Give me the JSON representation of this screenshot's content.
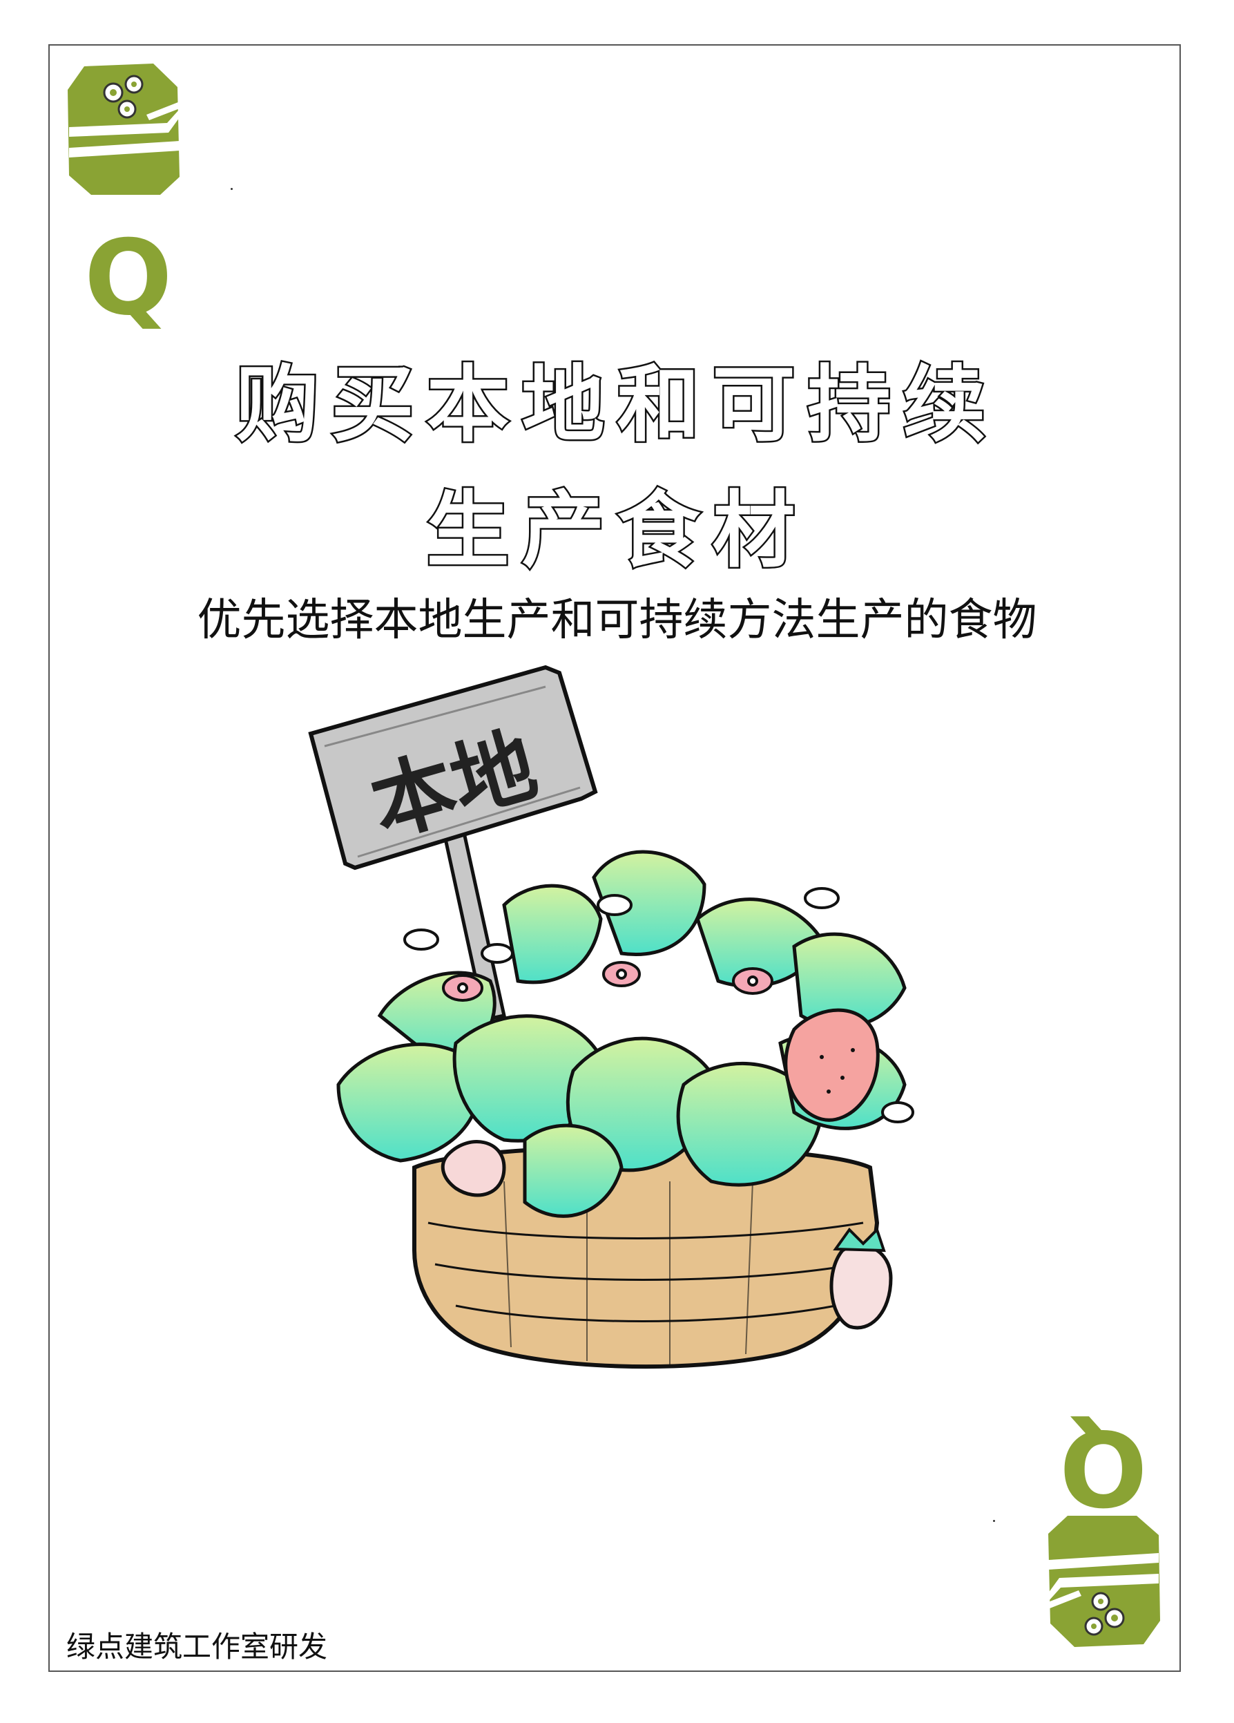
{
  "card": {
    "rank": "Q",
    "title_line1": "购买本地和可持续",
    "title_line2": "生产食材",
    "subtitle": "优先选择本地生产和可持续方法生产的食物",
    "sign_text": "本地",
    "footer": "绿点建筑工作室研发"
  },
  "colors": {
    "accent": "#8aa334",
    "leaf_light": "#c9f0a2",
    "leaf_mint": "#5fe0c0",
    "basket": "#e6c28e",
    "sign": "#c8c8c8",
    "flower_pink": "#f4a8b6",
    "strawberry": "#f5a3a0"
  },
  "icons": {
    "suit": "lunchbox-icon",
    "illustration": "local-produce-basket-illustration"
  }
}
